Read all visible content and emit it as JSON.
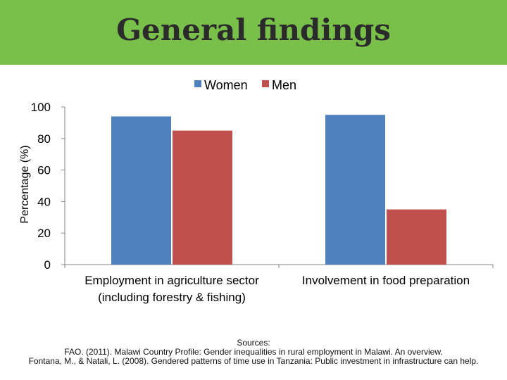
{
  "slide": {
    "title": "General findings",
    "sources_heading": "Sources:",
    "sources": [
      "FAO. (2011). Malawi Country Profile: Gender inequalities in rural employment in Malawi. An overview.",
      "Fontana, M., & Natali, L. (2008). Gendered patterns of time use in Tanzania: Public investment in infrastructure can help."
    ],
    "header_color": "#79c04a"
  },
  "chart_data": {
    "type": "bar",
    "title": "",
    "xlabel": "",
    "ylabel": "Percentage (%)",
    "ylim": [
      0,
      100
    ],
    "yticks": [
      0,
      20,
      40,
      60,
      80,
      100
    ],
    "grid": false,
    "legend_position": "top",
    "categories": [
      [
        "Employment in agriculture sector",
        "(including forestry & fishing)"
      ],
      [
        "Involvement in food preparation"
      ]
    ],
    "series": [
      {
        "name": "Women",
        "color": "#4f81bd",
        "values": [
          94,
          95
        ]
      },
      {
        "name": "Men",
        "color": "#c0504d",
        "values": [
          85,
          35
        ]
      }
    ]
  }
}
